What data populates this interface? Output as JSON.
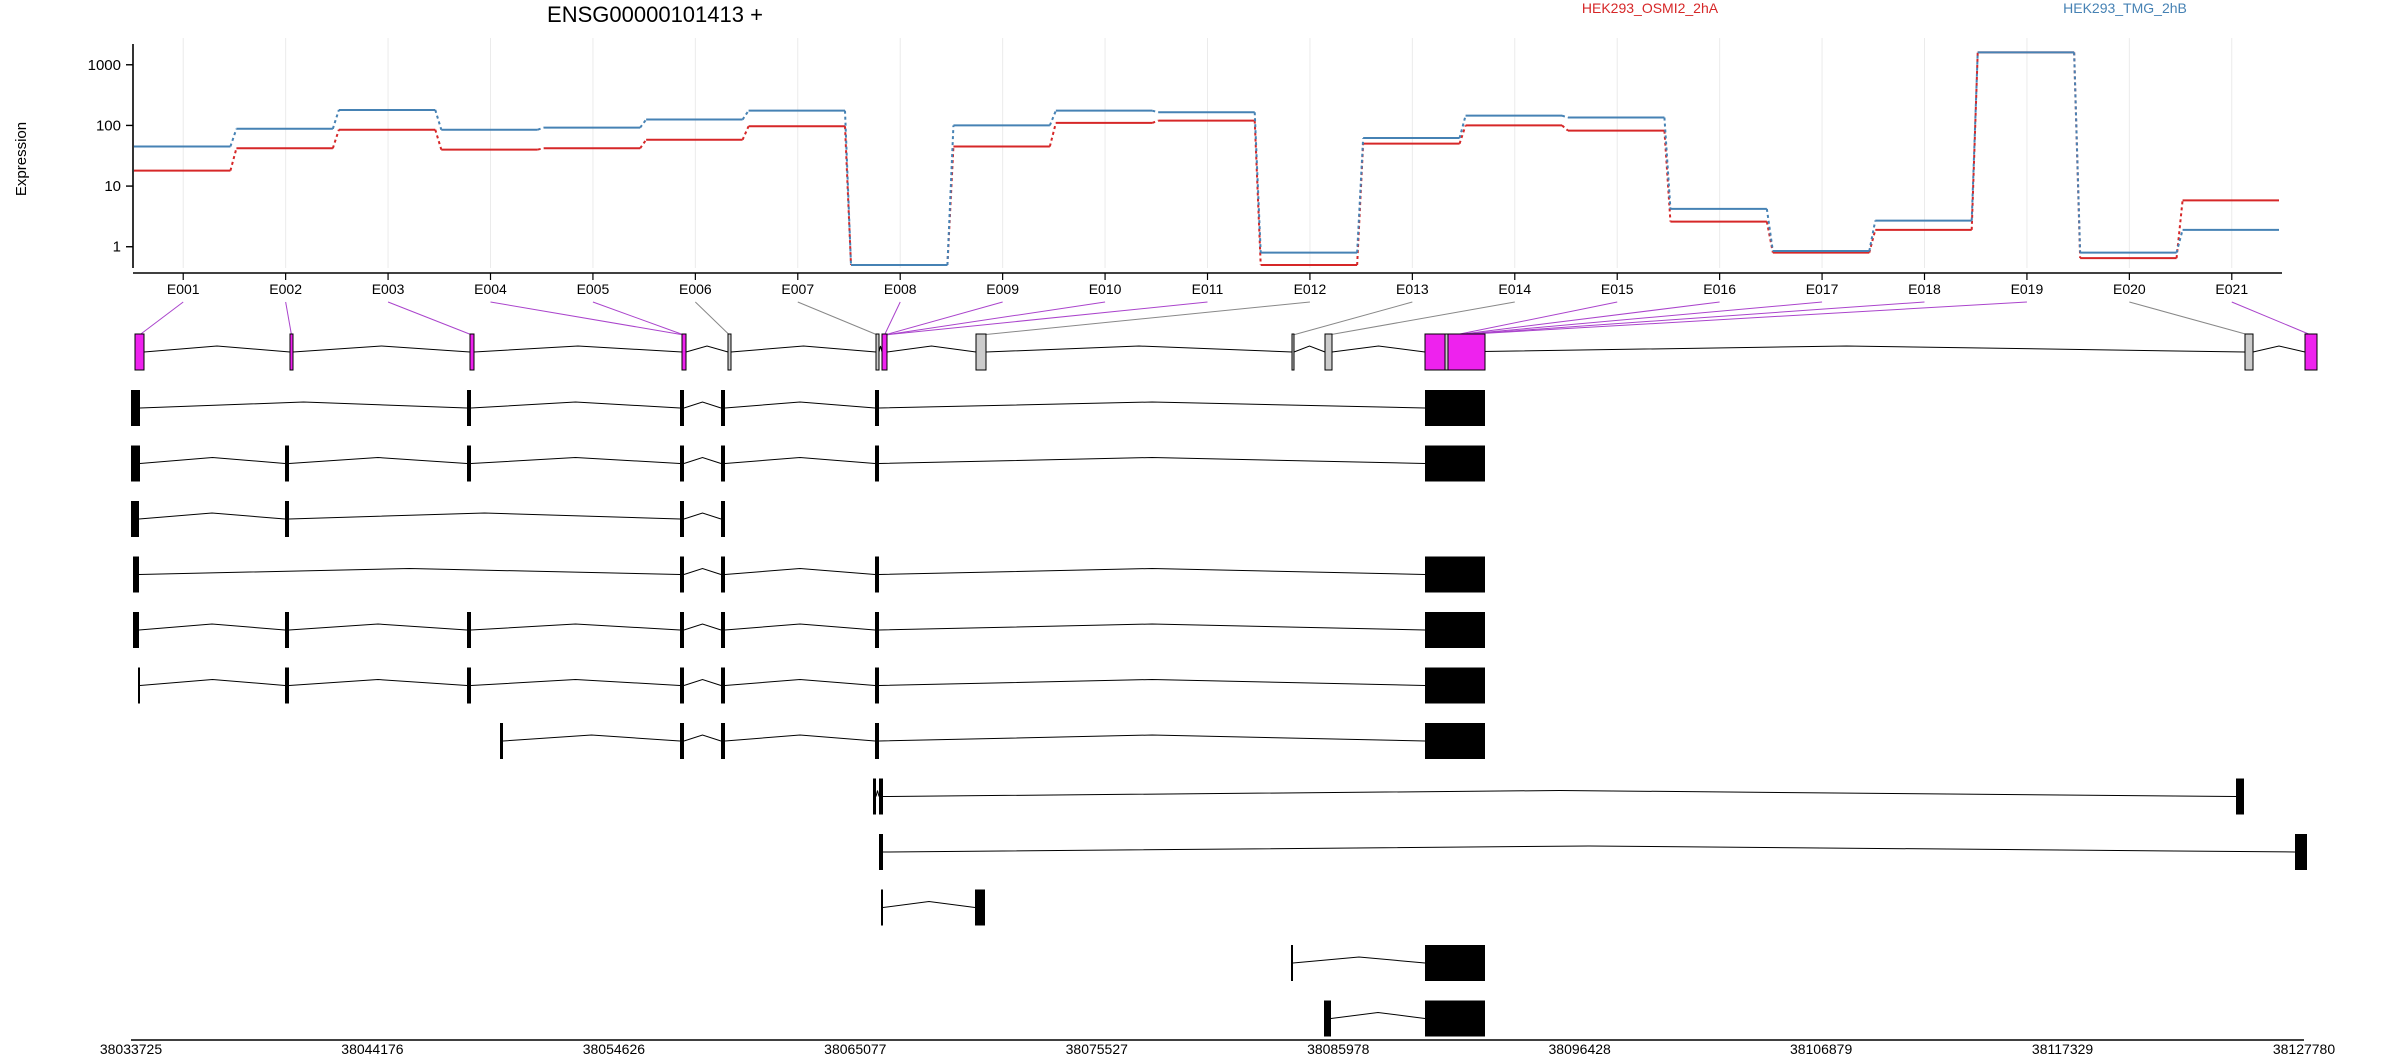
{
  "chart_data": {
    "type": "line",
    "title": "ENSG00000101413 +",
    "ylabel": "Expression",
    "y_scale": "log",
    "y_ticks": [
      1,
      10,
      100,
      1000
    ],
    "y_tick_labels": [
      "1",
      "10",
      "100",
      "1000"
    ],
    "ylim": [
      0.5,
      2200
    ],
    "categories": [
      "E001",
      "E002",
      "E003",
      "E004",
      "E005",
      "E006",
      "E007",
      "E008",
      "E009",
      "E010",
      "E011",
      "E012",
      "E013",
      "E014",
      "E015",
      "E016",
      "E017",
      "E018",
      "E019",
      "E020",
      "E021"
    ],
    "series": [
      {
        "name": "HEK293_OSMI2_2hA",
        "color": "#d62728",
        "values": [
          18,
          42,
          85,
          40,
          42,
          58,
          97,
          0.5,
          45,
          110,
          120,
          0.5,
          50,
          100,
          82,
          2.6,
          0.8,
          1.9,
          1600,
          0.65,
          5.8
        ]
      },
      {
        "name": "HEK293_TMG_2hB",
        "color": "#4682b4",
        "values": [
          45,
          88,
          180,
          85,
          92,
          125,
          175,
          0.5,
          100,
          175,
          165,
          0.8,
          62,
          145,
          135,
          4.2,
          0.85,
          2.7,
          1600,
          0.8,
          1.9
        ]
      }
    ],
    "grid": true,
    "legend_position": "top-right",
    "genomic_axis_ticks": [
      "38033725",
      "38044176",
      "38054626",
      "38065077",
      "38075527",
      "38085978",
      "38096428",
      "38106879",
      "38117329",
      "38127780"
    ]
  },
  "gene_model": {
    "exon_color": "#ee22ee",
    "line_color_highlight": "#aa44cc",
    "line_color_plain": "#888888",
    "transcript_count": 12
  }
}
